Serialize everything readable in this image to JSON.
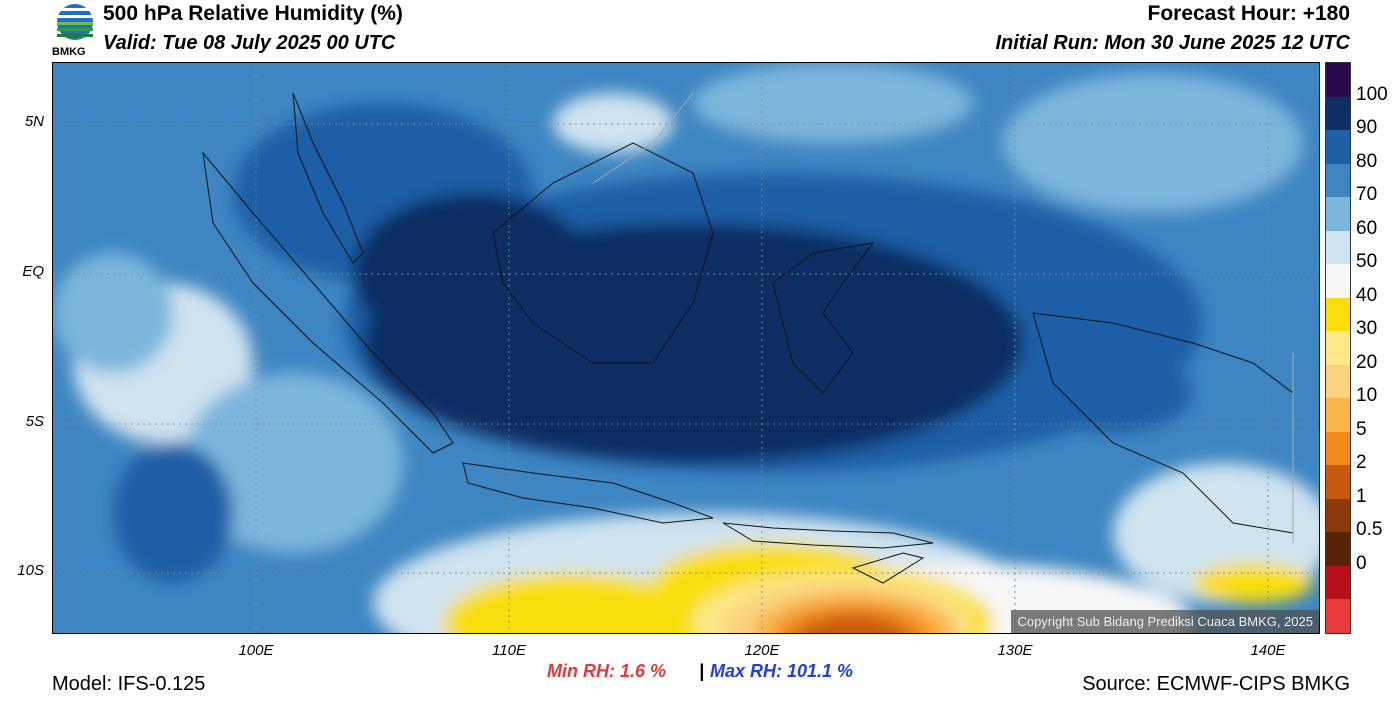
{
  "header": {
    "title": "500 hPa Relative Humidity (%)",
    "valid": "Valid: Tue 08 July 2025 00 UTC",
    "forecast_hour": "Forecast Hour: +180",
    "initial_run": "Initial Run: Mon 30 June 2025 12 UTC",
    "logo_text": "BMKG"
  },
  "axes": {
    "y_ticks": [
      "5N",
      "EQ",
      "5S",
      "10S"
    ],
    "x_ticks": [
      "100E",
      "110E",
      "120E",
      "130E",
      "140E"
    ]
  },
  "colorbar": {
    "labels": [
      "100",
      "90",
      "80",
      "70",
      "60",
      "50",
      "40",
      "30",
      "20",
      "10",
      "5",
      "2",
      "1",
      "0.5",
      "0"
    ],
    "colors": [
      "#2a0a4a",
      "#0d2f63",
      "#1e5fa6",
      "#3e86c2",
      "#7db6dc",
      "#cfe3f0",
      "#f6f6f6",
      "#f9de0c",
      "#fde888",
      "#fbd27f",
      "#f9b54a",
      "#f08a1c",
      "#c85a10",
      "#8e3a0c",
      "#5a2208",
      "#b8101a",
      "#e83a3a"
    ]
  },
  "stats": {
    "min_label": "Min RH:   1.6 %",
    "separator": "|",
    "max_label": "Max RH: 101.1 %"
  },
  "footer": {
    "model": "Model: IFS-0.125",
    "source": "Source: ECMWF-CIPS BMKG"
  },
  "copyright": "Copyright Sub Bidang Prediksi Cuaca BMKG, 2025"
}
